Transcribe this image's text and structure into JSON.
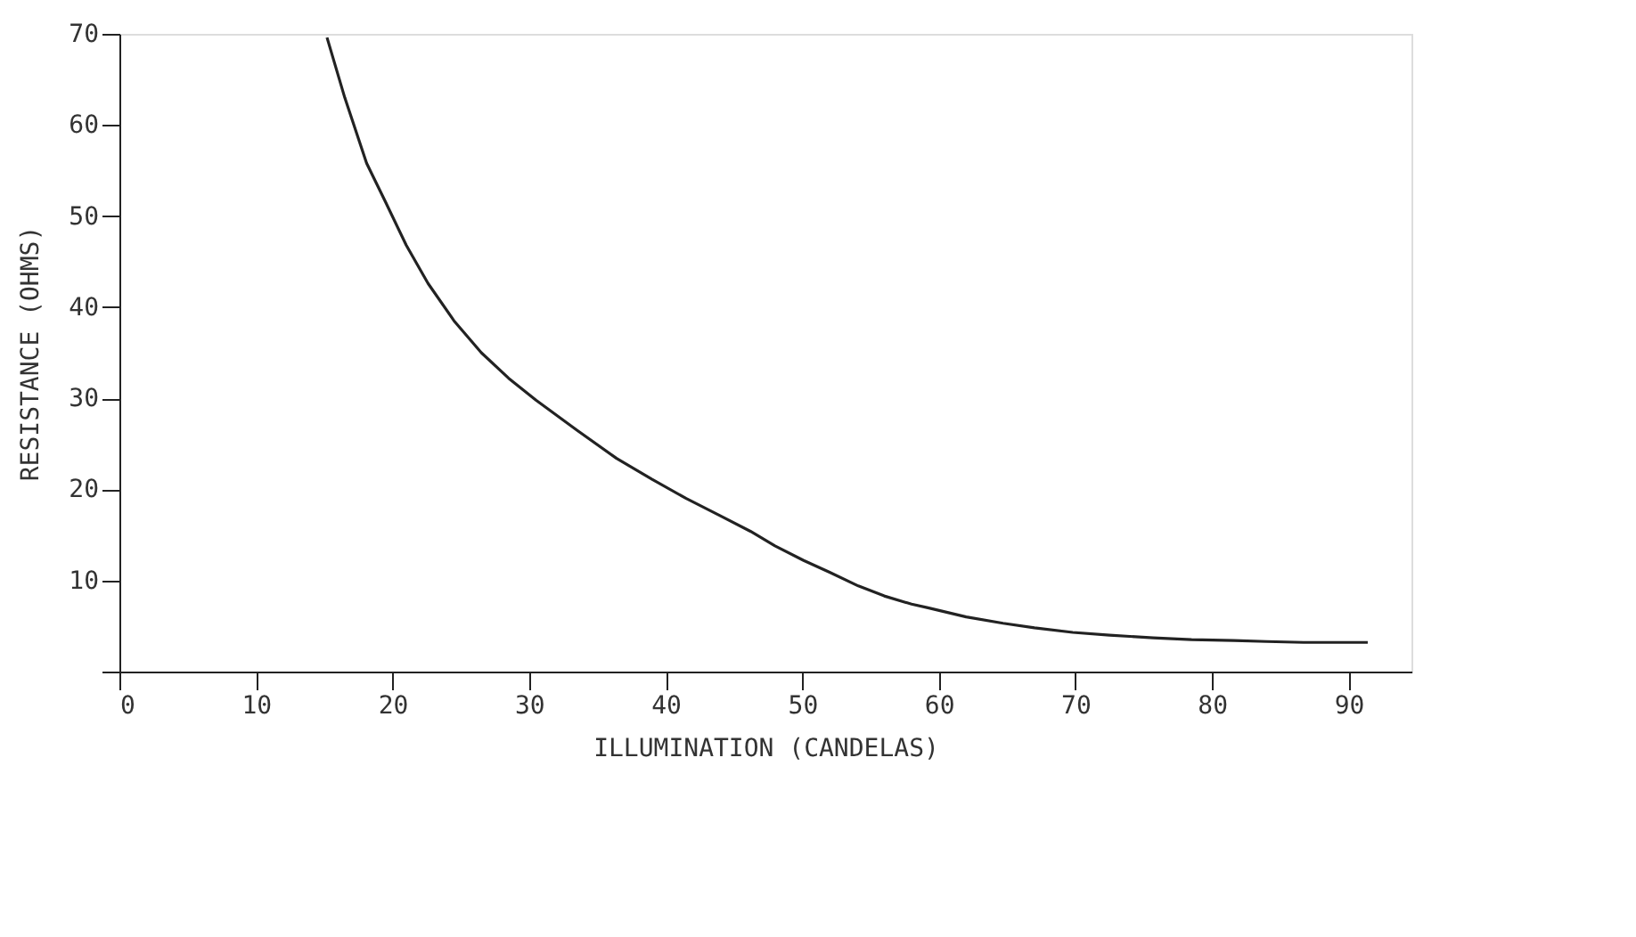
{
  "chart_data": {
    "type": "line",
    "xlabel": "ILLUMINATION (CANDELAS)",
    "ylabel": "RESISTANCE (OHMS)",
    "x": [
      15.2,
      16.5,
      18.1,
      19.5,
      21,
      22.6,
      24.5,
      26.5,
      28.5,
      30.5,
      33.5,
      36.4,
      39,
      41.5,
      44,
      46.2,
      48,
      50.1,
      52,
      54.1,
      56,
      58,
      59.2,
      62,
      64.7,
      67,
      69.8,
      72.5,
      75.7,
      78.5,
      81.6,
      84,
      86.7,
      89,
      91.4
    ],
    "series": [
      {
        "color": "#222222",
        "values": [
          69.6,
          63,
          55.8,
          51.5,
          46.8,
          42.6,
          38.5,
          35,
          32.2,
          29.8,
          26.5,
          23.4,
          21.1,
          19,
          17.1,
          15.4,
          13.8,
          12.2,
          10.9,
          9.4,
          8.3,
          7.4,
          7.0,
          6.0,
          5.3,
          4.8,
          4.3,
          4.0,
          3.7,
          3.5,
          3.4,
          3.3,
          3.2,
          3.2,
          3.2
        ]
      }
    ],
    "xlim": [
      0,
      94.6
    ],
    "ylim": [
      0,
      70
    ],
    "xticks": [
      0,
      10,
      20,
      30,
      40,
      50,
      60,
      70,
      80,
      90
    ],
    "yticks": [
      {
        "value": 0,
        "label": null
      },
      10,
      20,
      30,
      40,
      50,
      60,
      70
    ],
    "grid": false,
    "marker": "none",
    "line_style": "solid"
  }
}
